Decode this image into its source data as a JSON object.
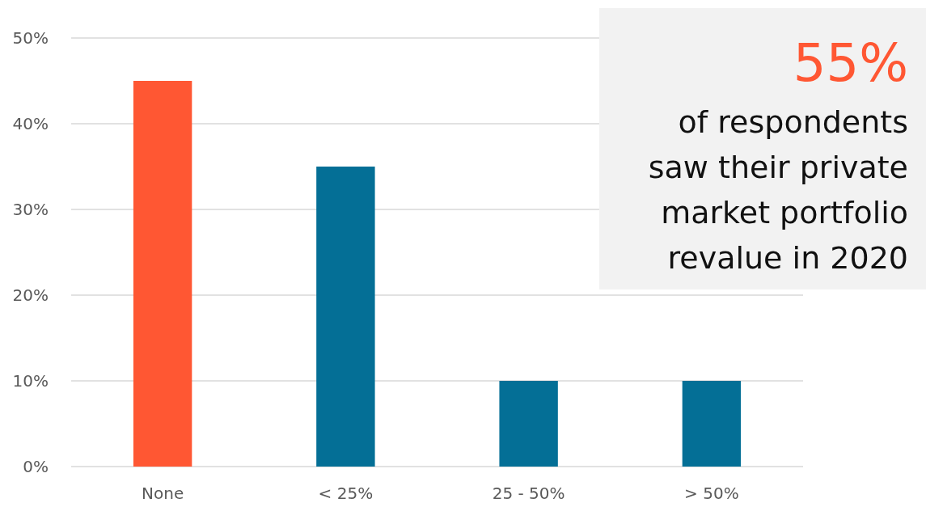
{
  "chart_data": {
    "type": "bar",
    "categories": [
      "None",
      "< 25%",
      "25 - 50%",
      "> 50%"
    ],
    "values": [
      45,
      35,
      10,
      10
    ],
    "colors": [
      "#ff5733",
      "#046f96",
      "#046f96",
      "#046f96"
    ],
    "ylim": [
      0,
      50
    ],
    "yticks": [
      {
        "value": 0,
        "label": "0%"
      },
      {
        "value": 10,
        "label": "10%"
      },
      {
        "value": 20,
        "label": "20%"
      },
      {
        "value": 30,
        "label": "30%"
      },
      {
        "value": 40,
        "label": "40%"
      },
      {
        "value": 50,
        "label": "50%"
      }
    ],
    "grid": "y",
    "annotations": [
      "55%",
      "of respondents saw their private market portfolio revalue in 2020"
    ]
  }
}
